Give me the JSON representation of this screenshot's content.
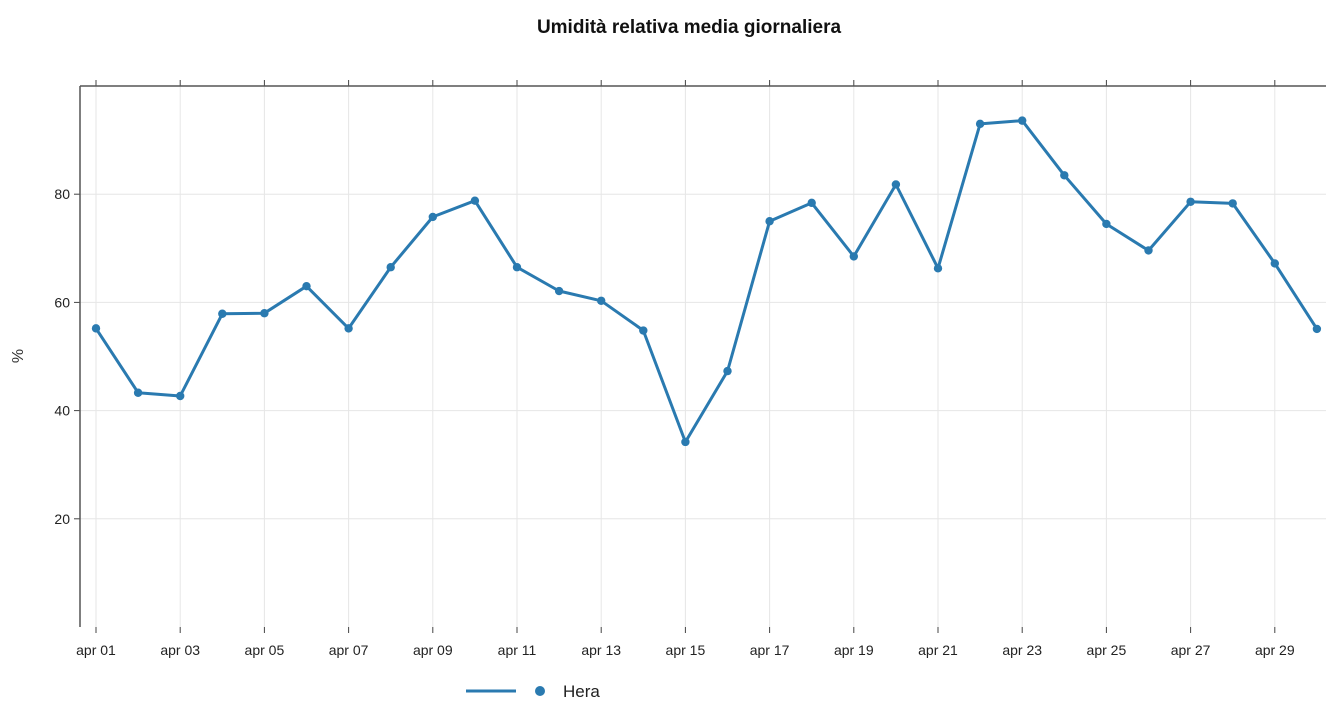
{
  "chart_data": {
    "type": "line",
    "title": "Umidità relativa media giornaliera",
    "xlabel": "",
    "ylabel": "%",
    "ylim": [
      0,
      100
    ],
    "yticks": [
      20,
      40,
      60,
      80
    ],
    "x": [
      "apr 01",
      "apr 02",
      "apr 03",
      "apr 04",
      "apr 05",
      "apr 06",
      "apr 07",
      "apr 08",
      "apr 09",
      "apr 10",
      "apr 11",
      "apr 12",
      "apr 13",
      "apr 14",
      "apr 15",
      "apr 16",
      "apr 17",
      "apr 18",
      "apr 19",
      "apr 20",
      "apr 21",
      "apr 22",
      "apr 23",
      "apr 24",
      "apr 25",
      "apr 26",
      "apr 27",
      "apr 28",
      "apr 29",
      "apr 30"
    ],
    "xtick_labels": [
      "apr 01",
      "apr 03",
      "apr 05",
      "apr 07",
      "apr 09",
      "apr 11",
      "apr 13",
      "apr 15",
      "apr 17",
      "apr 19",
      "apr 21",
      "apr 23",
      "apr 25",
      "apr 27",
      "apr 29"
    ],
    "series": [
      {
        "name": "Hera",
        "color": "#2a7ab0",
        "values": [
          55.2,
          43.3,
          42.7,
          57.9,
          58.0,
          63.0,
          55.2,
          66.5,
          75.8,
          78.8,
          66.5,
          62.1,
          60.3,
          54.8,
          34.2,
          47.3,
          75.0,
          78.4,
          68.5,
          81.8,
          66.3,
          93.0,
          93.6,
          83.5,
          74.5,
          69.6,
          78.6,
          78.3,
          67.2,
          55.1
        ]
      }
    ],
    "grid": true,
    "legend_position": "bottom"
  }
}
